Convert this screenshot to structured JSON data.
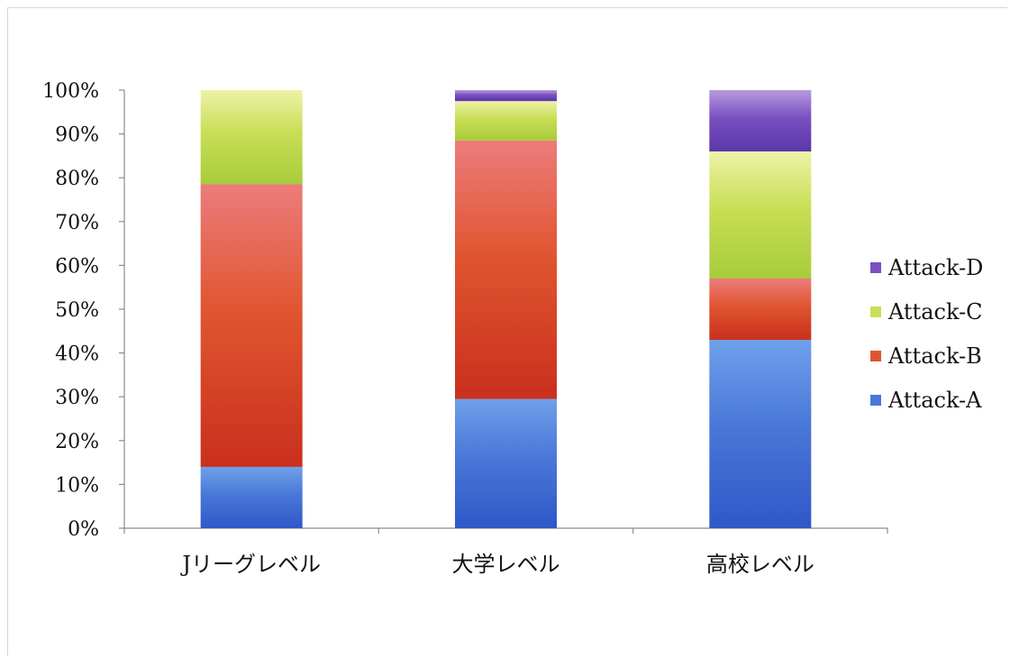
{
  "chart_data": {
    "type": "bar",
    "stacked": true,
    "percent": true,
    "categories": [
      "Jリーグレベル",
      "大学レベル",
      "高校レベル"
    ],
    "series": [
      {
        "name": "Attack-A",
        "values": [
          14,
          29.5,
          43
        ]
      },
      {
        "name": "Attack-B",
        "values": [
          64.5,
          59,
          14
        ]
      },
      {
        "name": "Attack-C",
        "values": [
          21.5,
          9,
          29
        ]
      },
      {
        "name": "Attack-D",
        "values": [
          0,
          2.5,
          14
        ]
      }
    ],
    "ylim": [
      0,
      100
    ],
    "yticks": [
      "0%",
      "10%",
      "20%",
      "30%",
      "40%",
      "50%",
      "60%",
      "70%",
      "80%",
      "90%",
      "100%"
    ],
    "title": "",
    "xlabel": "",
    "ylabel": "",
    "grid": false,
    "legend": {
      "position": "right",
      "order": [
        "Attack-D",
        "Attack-C",
        "Attack-B",
        "Attack-A"
      ]
    },
    "colors": {
      "Attack-A": {
        "light": "#6fa0ea",
        "dark": "#2f58c8",
        "swatch": "#4a78d8"
      },
      "Attack-B": {
        "light": "#ec7c7c",
        "dark": "#c9301e",
        "swatch": "#e0552f"
      },
      "Attack-C": {
        "light": "#eef2a8",
        "dark": "#a8cc3c",
        "swatch": "#c8de55"
      },
      "Attack-D": {
        "light": "#b69ade",
        "dark": "#5b37a8",
        "swatch": "#7a50c0"
      }
    }
  }
}
